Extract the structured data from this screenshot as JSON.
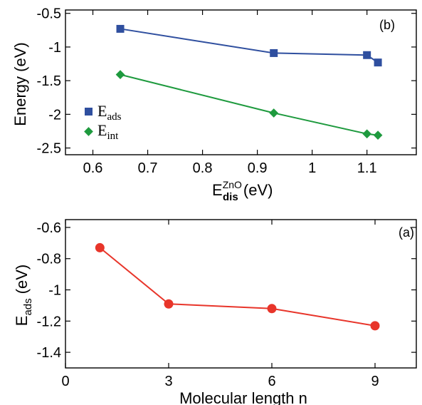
{
  "chart_data": [
    {
      "panel": "(b)",
      "type": "line",
      "xlabel": {
        "base": "E",
        "sub": "dis",
        "sup": "ZnO",
        "unit": "(eV)"
      },
      "ylabel": "Energy (eV)",
      "xlim": [
        0.55,
        1.19
      ],
      "ylim": [
        -2.6,
        -0.45
      ],
      "x_ticks": [
        0.6,
        0.7,
        0.8,
        0.9,
        1.0,
        1.1
      ],
      "x_tick_labels": [
        "0.6",
        "0.7",
        "0.8",
        "0.9",
        "1",
        "1.1"
      ],
      "y_ticks": [
        -0.5,
        -1.0,
        -1.5,
        -2.0,
        -2.5
      ],
      "y_tick_labels": [
        "-0.5",
        "-1",
        "-1.5",
        "-2",
        "-2.5"
      ],
      "legend_position": "left",
      "series": [
        {
          "name": "E_ads",
          "legend_base": "E",
          "legend_sub": "ads",
          "color": "#2f4f9f",
          "marker": "square",
          "x": [
            0.65,
            0.93,
            1.1,
            1.12
          ],
          "y": [
            -0.73,
            -1.09,
            -1.12,
            -1.23
          ]
        },
        {
          "name": "E_int",
          "legend_base": "E",
          "legend_sub": "int",
          "color": "#1e9a3e",
          "marker": "diamond",
          "x": [
            0.65,
            0.93,
            1.1,
            1.12
          ],
          "y": [
            -1.41,
            -1.98,
            -2.29,
            -2.31
          ]
        }
      ]
    },
    {
      "panel": "(a)",
      "type": "line",
      "xlabel": "Molecular length n",
      "ylabel": {
        "base": "E",
        "sub": "ads",
        "unit": "(eV)"
      },
      "xlim": [
        0,
        10.2
      ],
      "ylim": [
        -1.5,
        -0.55
      ],
      "x_ticks": [
        0,
        3,
        6,
        9
      ],
      "x_tick_labels": [
        "0",
        "3",
        "6",
        "9"
      ],
      "y_ticks": [
        -0.6,
        -0.8,
        -1.0,
        -1.2,
        -1.4
      ],
      "y_tick_labels": [
        "-0.6",
        "-0.8",
        "-1",
        "-1.2",
        "-1.4"
      ],
      "series": [
        {
          "color": "#e8352a",
          "marker": "circle",
          "x": [
            1,
            3,
            6,
            9
          ],
          "y": [
            -0.73,
            -1.09,
            -1.12,
            -1.23
          ]
        }
      ]
    }
  ]
}
